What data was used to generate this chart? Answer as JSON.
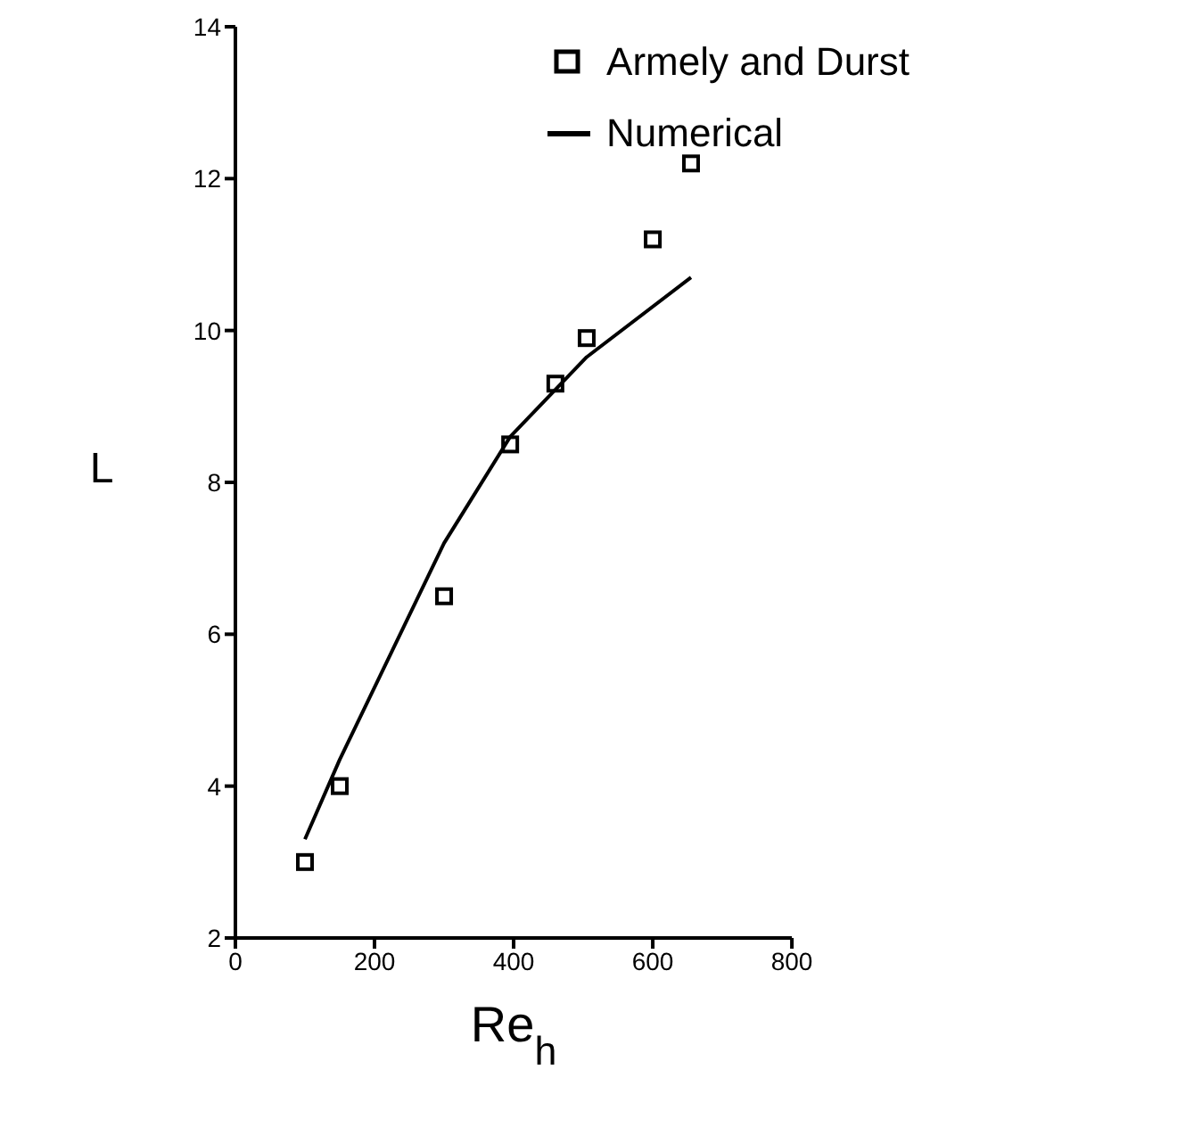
{
  "chart_data": {
    "type": "line",
    "xlabel": "Re$_{h}$",
    "ylabel": "L",
    "series": [
      {
        "name": "Armely and Durst",
        "type": "scatter",
        "marker": "square",
        "color": "#000000",
        "x": [
          100,
          150,
          300,
          395,
          460,
          505,
          600,
          655
        ],
        "values": [
          3.0,
          4.0,
          6.5,
          8.5,
          9.3,
          9.9,
          11.2,
          12.2
        ]
      },
      {
        "name": "Numerical",
        "color": "#000000",
        "x": [
          100,
          150,
          300,
          395,
          505,
          655
        ],
        "values": [
          3.3,
          4.35,
          7.2,
          8.6,
          9.65,
          10.7
        ]
      }
    ],
    "xlim": [
      0,
      800
    ],
    "xticks": [
      0,
      200,
      400,
      600,
      800
    ],
    "ylim": [
      2,
      14
    ],
    "yticks": [
      2,
      4,
      6,
      8,
      10,
      12,
      14
    ],
    "grid": false,
    "legend": "top right"
  }
}
